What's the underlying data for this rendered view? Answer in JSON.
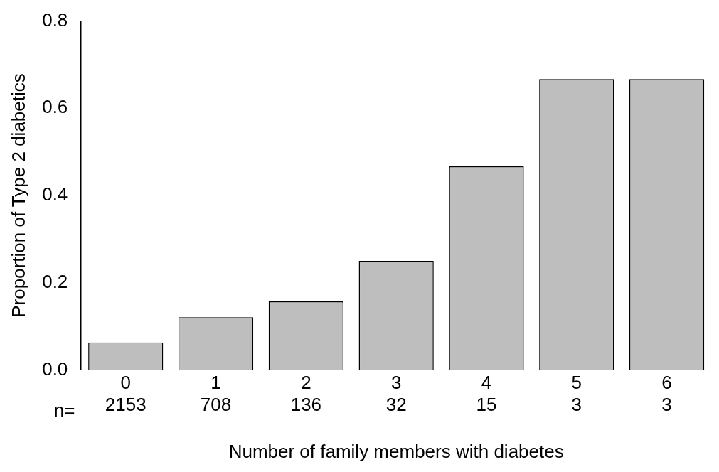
{
  "chart_data": {
    "type": "bar",
    "xlabel": "Number of family members with diabetes",
    "ylabel": "Proportion of Type 2 diabetics",
    "categories": [
      "0\n2153",
      "1\n708",
      "2\n136",
      "3\n32",
      "4\n15",
      "5\n3",
      "6\n3"
    ],
    "values": [
      0.063,
      0.121,
      0.157,
      0.25,
      0.467,
      0.667,
      0.667
    ],
    "color": "#bebebe",
    "ylim": [
      0,
      0.8
    ],
    "yticks": [
      {
        "value": 0,
        "label": "0.0"
      },
      {
        "value": 0.2,
        "label": "0.2"
      },
      {
        "value": 0.4,
        "label": "0.4"
      },
      {
        "value": 0.6,
        "label": "0.6"
      },
      {
        "value": 0.8,
        "label": "0.8"
      }
    ],
    "grid": false,
    "legend": false,
    "annotations": [
      "n="
    ]
  }
}
